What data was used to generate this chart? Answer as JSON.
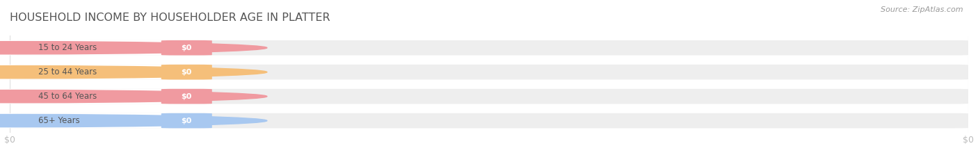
{
  "title": "HOUSEHOLD INCOME BY HOUSEHOLDER AGE IN PLATTER",
  "categories": [
    "15 to 24 Years",
    "25 to 44 Years",
    "45 to 64 Years",
    "65+ Years"
  ],
  "values": [
    0,
    0,
    0,
    0
  ],
  "bar_colors": [
    "#f09aa0",
    "#f5bf7a",
    "#f09aa0",
    "#a8c8f0"
  ],
  "bar_bg_color": "#eeeeee",
  "source_text": "Source: ZipAtlas.com",
  "title_fontsize": 11.5,
  "bar_height": 0.62,
  "background_color": "#ffffff",
  "tick_label_color": "#bbbbbb",
  "title_color": "#555555",
  "source_color": "#999999",
  "label_text_color": "#555555",
  "value_text_color": "#ffffff",
  "grid_color": "#dddddd"
}
